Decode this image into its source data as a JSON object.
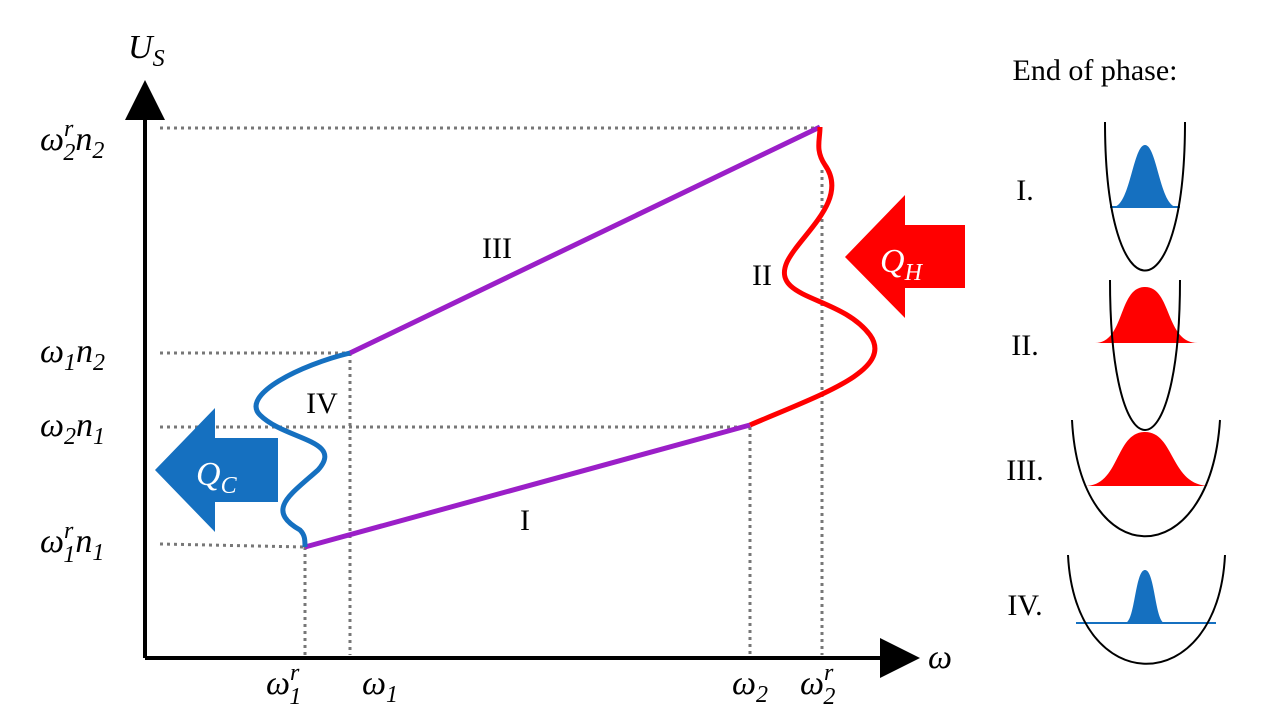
{
  "axes": {
    "y_label": {
      "symbol": "U",
      "sub": "S"
    },
    "x_label": "ω"
  },
  "y_labels": [
    {
      "w": "ω",
      "w_sup": "r",
      "w_sub": "2",
      "n": "n",
      "n_sub": "2"
    },
    {
      "w": "ω",
      "w_sub": "1",
      "n": "n",
      "n_sub": "2"
    },
    {
      "w": "ω",
      "w_sub": "2",
      "n": "n",
      "n_sub": "1"
    },
    {
      "w": "ω",
      "w_sup": "r",
      "w_sub": "1",
      "n": "n",
      "n_sub": "1"
    }
  ],
  "x_labels": [
    {
      "w": "ω",
      "sup": "r",
      "sub": "1"
    },
    {
      "w": "ω",
      "sub": "1"
    },
    {
      "w": "ω",
      "sub": "2"
    },
    {
      "w": "ω",
      "sup": "r",
      "sub": "2"
    }
  ],
  "phase_labels": [
    "I",
    "II",
    "III",
    "IV"
  ],
  "heat": [
    {
      "symbol": "Q",
      "sub": "H"
    },
    {
      "symbol": "Q",
      "sub": "C"
    }
  ],
  "legend": {
    "title": "End of phase:",
    "items": [
      "I.",
      "II.",
      "III.",
      "IV."
    ]
  }
}
